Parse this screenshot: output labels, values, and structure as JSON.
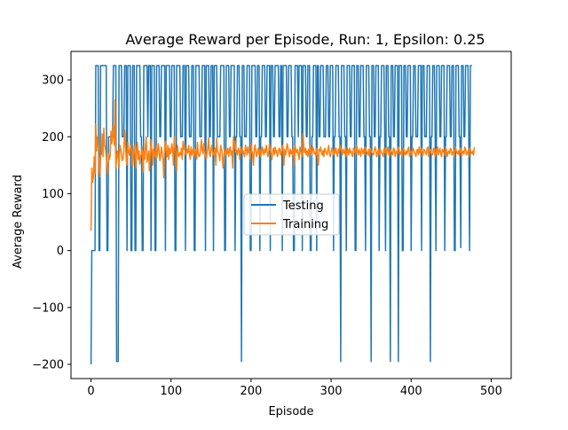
{
  "chart_data": {
    "type": "line",
    "title": "Average Reward per Episode, Run: 1, Epsilon: 0.25",
    "xlabel": "Episode",
    "ylabel": "Average Reward",
    "xlim": [
      -25,
      525
    ],
    "ylim": [
      -225,
      350
    ],
    "xticks": [
      0,
      100,
      200,
      300,
      400,
      500
    ],
    "yticks": [
      -200,
      -100,
      0,
      100,
      200,
      300
    ],
    "grid": false,
    "legend": {
      "placement": "center",
      "entries": [
        "Testing",
        "Training"
      ]
    },
    "colors": {
      "Testing": "#1f77b4",
      "Training": "#ff7f0e"
    },
    "series": [
      {
        "name": "Testing",
        "x_start": 0,
        "x_step": 1,
        "values": [
          -200,
          0,
          0,
          0,
          0,
          0,
          325,
          325,
          325,
          325,
          0,
          0,
          325,
          325,
          325,
          325,
          325,
          325,
          325,
          325,
          0,
          0,
          200,
          200,
          200,
          200,
          200,
          200,
          325,
          325,
          325,
          325,
          -195,
          -195,
          -195,
          325,
          325,
          325,
          325,
          200,
          200,
          200,
          325,
          325,
          325,
          0,
          325,
          325,
          325,
          325,
          0,
          0,
          325,
          325,
          325,
          0,
          0,
          325,
          325,
          325,
          325,
          325,
          200,
          200,
          0,
          0,
          325,
          325,
          325,
          325,
          325,
          200,
          325,
          325,
          325,
          0,
          325,
          325,
          325,
          325,
          0,
          0,
          325,
          325,
          325,
          325,
          200,
          200,
          325,
          325,
          325,
          325,
          325,
          0,
          325,
          325,
          325,
          325,
          325,
          200,
          200,
          325,
          325,
          325,
          325,
          0,
          0,
          325,
          325,
          325,
          325,
          325,
          200,
          200,
          200,
          325,
          325,
          325,
          0,
          325,
          325,
          325,
          325,
          200,
          200,
          200,
          325,
          325,
          325,
          0,
          0,
          325,
          325,
          325,
          325,
          325,
          200,
          200,
          200,
          325,
          325,
          325,
          325,
          0,
          325,
          325,
          325,
          325,
          200,
          200,
          325,
          325,
          325,
          0,
          325,
          325,
          325,
          325,
          200,
          200,
          200,
          200,
          325,
          325,
          325,
          325,
          325,
          0,
          0,
          325,
          325,
          325,
          325,
          200,
          200,
          325,
          325,
          325,
          325,
          325,
          0,
          200,
          200,
          325,
          325,
          325,
          200,
          200,
          -195,
          325,
          325,
          325,
          200,
          200,
          200,
          325,
          325,
          325,
          325,
          0,
          0,
          325,
          325,
          325,
          325,
          325,
          200,
          200,
          325,
          325,
          325,
          0,
          200,
          200,
          325,
          325,
          325,
          325,
          200,
          200,
          325,
          325,
          325,
          325,
          0,
          325,
          325,
          325,
          200,
          200,
          325,
          325,
          325,
          325,
          325,
          200,
          200,
          325,
          325,
          0,
          325,
          325,
          325,
          325,
          325,
          200,
          200,
          325,
          325,
          325,
          325,
          200,
          200,
          0,
          0,
          325,
          325,
          325,
          325,
          200,
          325,
          325,
          325,
          325,
          0,
          325,
          325,
          325,
          325,
          200,
          200,
          325,
          325,
          325,
          0,
          0,
          200,
          200,
          325,
          325,
          325,
          325,
          0,
          325,
          325,
          200,
          200,
          325,
          325,
          325,
          325,
          200,
          200,
          200,
          325,
          325,
          325,
          200,
          200,
          325,
          325,
          325,
          325,
          0,
          200,
          200,
          325,
          325,
          325,
          325,
          200,
          200,
          -195,
          325,
          325,
          325,
          325,
          200,
          200,
          0,
          325,
          325,
          325,
          325,
          200,
          200,
          325,
          325,
          325,
          325,
          0,
          0,
          325,
          325,
          325,
          200,
          200,
          325,
          325,
          325,
          325,
          200,
          200,
          0,
          325,
          325,
          325,
          325,
          200,
          200,
          -195,
          325,
          325,
          325,
          200,
          200,
          325,
          325,
          325,
          325,
          0,
          200,
          200,
          325,
          325,
          325,
          325,
          200,
          0,
          325,
          325,
          325,
          200,
          200,
          -195,
          325,
          325,
          325,
          200,
          200,
          325,
          325,
          325,
          325,
          -195,
          325,
          325,
          325,
          325,
          0,
          0,
          325,
          325,
          325,
          200,
          200,
          325,
          325,
          325,
          325,
          0,
          200,
          200,
          325,
          325,
          325,
          200,
          200,
          200,
          325,
          325,
          325,
          325,
          0,
          325,
          325,
          325,
          200,
          200,
          200,
          325,
          325,
          325,
          325,
          -195,
          200,
          200,
          325,
          325,
          325,
          200,
          0,
          325,
          325,
          325,
          325,
          200,
          200,
          325,
          325,
          325,
          325,
          0,
          200,
          200,
          325,
          325,
          325,
          325,
          200,
          200,
          325,
          325,
          325,
          0,
          0,
          325,
          325,
          325,
          325,
          200,
          200,
          5,
          325,
          325,
          325,
          200,
          200,
          325,
          325,
          325,
          325,
          200,
          0,
          325,
          325,
          325
        ]
      },
      {
        "name": "Training",
        "x_start": 0,
        "x_step": 1,
        "values": [
          35,
          145,
          120,
          130,
          165,
          135,
          222,
          175,
          200,
          185,
          145,
          130,
          165,
          170,
          205,
          165,
          215,
          185,
          180,
          165,
          150,
          135,
          170,
          160,
          168,
          210,
          188,
          200,
          220,
          185,
          265,
          145,
          160,
          175,
          165,
          145,
          185,
          180,
          170,
          158,
          162,
          175,
          212,
          190,
          160,
          150,
          190,
          175,
          168,
          180,
          185,
          172,
          148,
          165,
          185,
          170,
          145,
          178,
          190,
          160,
          175,
          152,
          165,
          170,
          182,
          138,
          175,
          160,
          185,
          200,
          155,
          165,
          175,
          140,
          168,
          195,
          175,
          150,
          178,
          165,
          168,
          185,
          162,
          170,
          188,
          178,
          158,
          165,
          182,
          172,
          160,
          128,
          178,
          192,
          175,
          165,
          185,
          160,
          180,
          170,
          172,
          188,
          178,
          150,
          200,
          180,
          172,
          140,
          185,
          170,
          165,
          172,
          168,
          180,
          160,
          192,
          178,
          185,
          170,
          168,
          178,
          172,
          185,
          170,
          160,
          182,
          168,
          175,
          180,
          166,
          172,
          178,
          160,
          190,
          170,
          165,
          168,
          180,
          195,
          175,
          170,
          188,
          175,
          168,
          160,
          172,
          180,
          198,
          170,
          165,
          178,
          185,
          172,
          168,
          175,
          180,
          150,
          198,
          175,
          172,
          168,
          158,
          185,
          178,
          170,
          145,
          162,
          180,
          175,
          168,
          172,
          180,
          165,
          178,
          182,
          168,
          175,
          145,
          200,
          180,
          192,
          172,
          176,
          168,
          180,
          175,
          160,
          182,
          172,
          178,
          175,
          170,
          165,
          185,
          178,
          168,
          182,
          172,
          175,
          160,
          188,
          175,
          170,
          150,
          178,
          186,
          172,
          165,
          175,
          180,
          168,
          178,
          165,
          170,
          182,
          175,
          168,
          178,
          172,
          185,
          175,
          165,
          172,
          188,
          178,
          170,
          160,
          175,
          180,
          168,
          182,
          172,
          176,
          165,
          170,
          180,
          178,
          168,
          172,
          185,
          180,
          150,
          178,
          168,
          175,
          188,
          182,
          172,
          165,
          178,
          170,
          175,
          168,
          180,
          150,
          185,
          175,
          172,
          178,
          168,
          160,
          182,
          175,
          170,
          165,
          205,
          178,
          172,
          180,
          168,
          175,
          165,
          178,
          172,
          185,
          175,
          168,
          182,
          178,
          170,
          172,
          168,
          180,
          165,
          150,
          178,
          175,
          182,
          170,
          168,
          176,
          165,
          180,
          175,
          172,
          168,
          178,
          185,
          170,
          165,
          172,
          180,
          175,
          168,
          178,
          172,
          180,
          170,
          165,
          178,
          172,
          185,
          180,
          175,
          168,
          178,
          172,
          170,
          182,
          165,
          175,
          178,
          168,
          180,
          172,
          175,
          168,
          165,
          180,
          178,
          172,
          170,
          185,
          175,
          168,
          178,
          172,
          165,
          180,
          175,
          170,
          178,
          168,
          182,
          175,
          172,
          168,
          178,
          165,
          180,
          175,
          172,
          170,
          168,
          178,
          182,
          175,
          165,
          172,
          178,
          168,
          180,
          175,
          172,
          170,
          165,
          178,
          172,
          180,
          168,
          175,
          182,
          170,
          165,
          178,
          175,
          172,
          168,
          180,
          178,
          165,
          172,
          175,
          170,
          182,
          178,
          168,
          172,
          175,
          165,
          180,
          178,
          172,
          168,
          175,
          170,
          178,
          182,
          165,
          172,
          175,
          168,
          180,
          178,
          172,
          170,
          165,
          175,
          178,
          168,
          182,
          172,
          175,
          180,
          165,
          170,
          178,
          175,
          172,
          168,
          180,
          182,
          165,
          175,
          178,
          172,
          168,
          170,
          180,
          175,
          165,
          178,
          172,
          182,
          168,
          175,
          180,
          170,
          165,
          178,
          175,
          172,
          168,
          182,
          178,
          165,
          172,
          175,
          170,
          180,
          178,
          168,
          172,
          175,
          165,
          182,
          178,
          172,
          170,
          175,
          168,
          180,
          178,
          165,
          172,
          175,
          170,
          182,
          178,
          168,
          172,
          175,
          165,
          180,
          178,
          172,
          170,
          175,
          168,
          182
        ]
      }
    ]
  }
}
